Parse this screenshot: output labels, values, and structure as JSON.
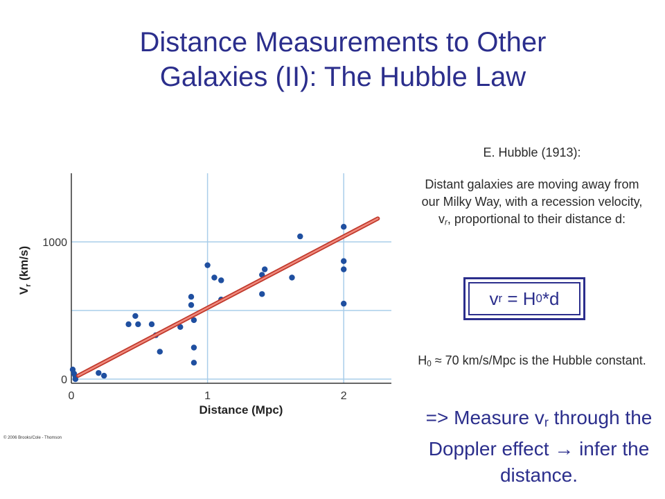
{
  "title": {
    "line1": "Distance Measurements to Other",
    "line2": "Galaxies (II): The Hubble Law"
  },
  "attribution": "E. Hubble (1913):",
  "description": {
    "part1": "Distant galaxies are moving away from our Milky Way, with a recession velocity, v",
    "sub": "r",
    "part2": ", proportional to their distance d:"
  },
  "equation": {
    "lhs": "v",
    "lhs_sub": "r",
    "mid": " = H",
    "mid_sub": "0",
    "rhs": "*d"
  },
  "hubble_constant": {
    "pre": "H",
    "sub": "0",
    "text": " ≈ 70 km/s/Mpc is the Hubble constant."
  },
  "conclusion": {
    "pre": "=> Measure v",
    "sub": "r",
    "text": " through the Doppler effect → infer the distance."
  },
  "copyright": "© 2006 Brooks/Cole - Thomson",
  "colors": {
    "title": "#2b2e8c",
    "points": "#1f4fa0",
    "fit_line": "#d9534f",
    "grid": "#a9cdea"
  },
  "chart_data": {
    "type": "scatter",
    "xlabel": "Distance (Mpc)",
    "ylabel": "V",
    "ylabel_sub": "r",
    "ylabel_unit": " (km/s)",
    "xlim": [
      0,
      2.35
    ],
    "ylim": [
      -30,
      1500
    ],
    "xticks": [
      0,
      1,
      2
    ],
    "yticks": [
      0,
      1000
    ],
    "grid": true,
    "points": [
      {
        "x": 0.01,
        "y": 70
      },
      {
        "x": 0.02,
        "y": 40
      },
      {
        "x": 0.03,
        "y": 20
      },
      {
        "x": 0.03,
        "y": 0
      },
      {
        "x": 0.2,
        "y": 45
      },
      {
        "x": 0.24,
        "y": 25
      },
      {
        "x": 0.42,
        "y": 400
      },
      {
        "x": 0.47,
        "y": 460
      },
      {
        "x": 0.49,
        "y": 400
      },
      {
        "x": 0.59,
        "y": 400
      },
      {
        "x": 0.62,
        "y": 320
      },
      {
        "x": 0.65,
        "y": 200
      },
      {
        "x": 0.8,
        "y": 380
      },
      {
        "x": 0.88,
        "y": 600
      },
      {
        "x": 0.88,
        "y": 540
      },
      {
        "x": 0.9,
        "y": 430
      },
      {
        "x": 0.9,
        "y": 230
      },
      {
        "x": 0.9,
        "y": 120
      },
      {
        "x": 1.0,
        "y": 830
      },
      {
        "x": 1.05,
        "y": 740
      },
      {
        "x": 1.1,
        "y": 720
      },
      {
        "x": 1.1,
        "y": 580
      },
      {
        "x": 1.4,
        "y": 760
      },
      {
        "x": 1.42,
        "y": 800
      },
      {
        "x": 1.4,
        "y": 620
      },
      {
        "x": 1.62,
        "y": 740
      },
      {
        "x": 1.68,
        "y": 1040
      },
      {
        "x": 2.0,
        "y": 1110
      },
      {
        "x": 2.0,
        "y": 860
      },
      {
        "x": 2.0,
        "y": 800
      },
      {
        "x": 2.0,
        "y": 550
      }
    ],
    "fit_line": {
      "x": [
        0.05,
        2.25
      ],
      "y": [
        25,
        1170
      ]
    }
  }
}
